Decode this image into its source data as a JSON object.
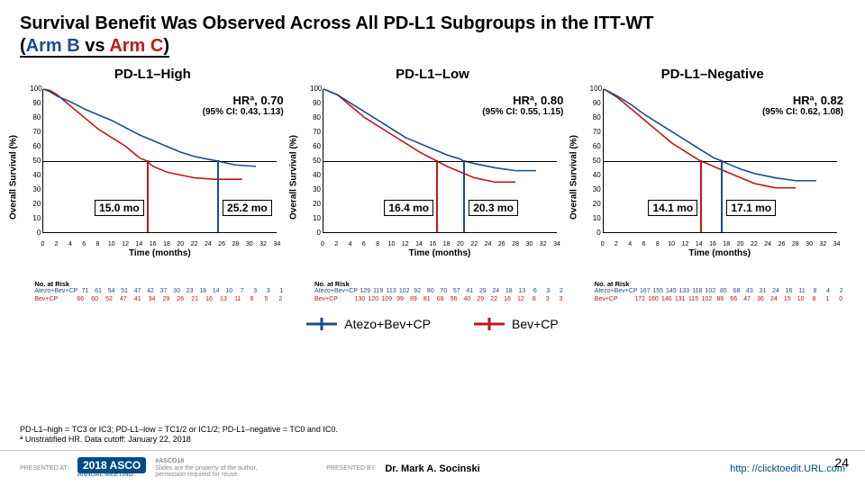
{
  "title_main": "Survival Benefit Was Observed Across All PD-L1 Subgroups in the ITT-WT",
  "title_paren_open": "(",
  "title_armB": "Arm B",
  "title_vs": " vs ",
  "title_armC": "Arm C",
  "title_paren_close": ")",
  "common": {
    "ylabel": "Overall Survival (%)",
    "xlabel": "Time (months)",
    "yticks": [
      0,
      10,
      20,
      30,
      40,
      50,
      60,
      70,
      80,
      90,
      100
    ],
    "xticks": [
      0,
      2,
      4,
      6,
      8,
      10,
      12,
      14,
      16,
      18,
      20,
      22,
      24,
      26,
      28,
      30,
      32,
      34
    ],
    "nar_title": "No. at Risk",
    "series_names": {
      "A": "Atezo+Bev+CP",
      "B": "Bev+CP"
    },
    "colors": {
      "A": "#1a4d8f",
      "B": "#c01818",
      "axis": "#000000",
      "bg": "#ffffff"
    },
    "line_width": 1.6,
    "x_max": 34,
    "y_max": 100,
    "h50_pct": 50
  },
  "panels": [
    {
      "title": "PD-L1–High",
      "hr_label": "HRª, 0.70",
      "ci_label": "(95% CI: 0.43, 1.13)",
      "median_A": {
        "months": 25.2,
        "label": "25.2 mo",
        "height_pct": 50
      },
      "median_B": {
        "months": 15.0,
        "label": "15.0 mo",
        "height_pct": 50
      },
      "curve_A": [
        [
          0,
          100
        ],
        [
          1,
          98
        ],
        [
          2,
          95
        ],
        [
          3,
          93
        ],
        [
          4,
          91
        ],
        [
          6,
          86
        ],
        [
          8,
          82
        ],
        [
          10,
          78
        ],
        [
          12,
          73
        ],
        [
          14,
          68
        ],
        [
          16,
          64
        ],
        [
          18,
          60
        ],
        [
          20,
          56
        ],
        [
          22,
          53
        ],
        [
          24,
          51
        ],
        [
          25.2,
          50
        ],
        [
          28,
          47
        ],
        [
          31,
          46
        ]
      ],
      "curve_B": [
        [
          0,
          100
        ],
        [
          1,
          99
        ],
        [
          2,
          96
        ],
        [
          3,
          92
        ],
        [
          4,
          88
        ],
        [
          6,
          80
        ],
        [
          8,
          72
        ],
        [
          10,
          66
        ],
        [
          12,
          60
        ],
        [
          13,
          56
        ],
        [
          14,
          52
        ],
        [
          15,
          50
        ],
        [
          16,
          46
        ],
        [
          18,
          42
        ],
        [
          20,
          40
        ],
        [
          22,
          38
        ],
        [
          25,
          37
        ],
        [
          29,
          37
        ]
      ],
      "nar_A": [
        71,
        61,
        54,
        51,
        47,
        42,
        37,
        30,
        23,
        18,
        14,
        10,
        7,
        3,
        3,
        1
      ],
      "nar_B": [
        66,
        60,
        52,
        47,
        41,
        34,
        29,
        26,
        21,
        16,
        13,
        11,
        6,
        5,
        2
      ]
    },
    {
      "title": "PD-L1–Low",
      "hr_label": "HRª, 0.80",
      "ci_label": "(95% CI: 0.55, 1.15)",
      "median_A": {
        "months": 20.3,
        "label": "20.3 mo",
        "height_pct": 50
      },
      "median_B": {
        "months": 16.4,
        "label": "16.4 mo",
        "height_pct": 50
      },
      "curve_A": [
        [
          0,
          100
        ],
        [
          2,
          96
        ],
        [
          4,
          90
        ],
        [
          6,
          84
        ],
        [
          8,
          78
        ],
        [
          10,
          72
        ],
        [
          12,
          66
        ],
        [
          14,
          62
        ],
        [
          16,
          58
        ],
        [
          18,
          54
        ],
        [
          20,
          51
        ],
        [
          20.3,
          50
        ],
        [
          22,
          48
        ],
        [
          25,
          45
        ],
        [
          28,
          43
        ],
        [
          31,
          43
        ]
      ],
      "curve_B": [
        [
          0,
          100
        ],
        [
          2,
          96
        ],
        [
          4,
          88
        ],
        [
          6,
          80
        ],
        [
          8,
          74
        ],
        [
          10,
          68
        ],
        [
          12,
          62
        ],
        [
          14,
          56
        ],
        [
          16,
          51
        ],
        [
          16.4,
          50
        ],
        [
          18,
          46
        ],
        [
          20,
          42
        ],
        [
          22,
          38
        ],
        [
          25,
          35
        ],
        [
          28,
          35
        ]
      ],
      "nar_A": [
        129,
        119,
        113,
        102,
        92,
        80,
        70,
        57,
        41,
        29,
        24,
        18,
        13,
        6,
        3,
        2
      ],
      "nar_B": [
        130,
        120,
        109,
        99,
        89,
        81,
        69,
        56,
        40,
        29,
        22,
        16,
        12,
        8,
        3,
        3
      ]
    },
    {
      "title": "PD-L1–Negative",
      "hr_label": "HRª, 0.82",
      "ci_label": "(95% CI: 0.62, 1.08)",
      "median_A": {
        "months": 17.1,
        "label": "17.1 mo",
        "height_pct": 50
      },
      "median_B": {
        "months": 14.1,
        "label": "14.1 mo",
        "height_pct": 50
      },
      "curve_A": [
        [
          0,
          100
        ],
        [
          2,
          95
        ],
        [
          4,
          89
        ],
        [
          6,
          82
        ],
        [
          8,
          76
        ],
        [
          10,
          70
        ],
        [
          12,
          64
        ],
        [
          14,
          58
        ],
        [
          16,
          52
        ],
        [
          17.1,
          50
        ],
        [
          18,
          48
        ],
        [
          20,
          44
        ],
        [
          22,
          41
        ],
        [
          25,
          38
        ],
        [
          28,
          36
        ],
        [
          31,
          36
        ]
      ],
      "curve_B": [
        [
          0,
          100
        ],
        [
          2,
          94
        ],
        [
          4,
          86
        ],
        [
          6,
          78
        ],
        [
          8,
          70
        ],
        [
          10,
          62
        ],
        [
          12,
          56
        ],
        [
          14,
          50
        ],
        [
          14.1,
          50
        ],
        [
          16,
          46
        ],
        [
          18,
          42
        ],
        [
          20,
          38
        ],
        [
          22,
          34
        ],
        [
          25,
          31
        ],
        [
          28,
          31
        ]
      ],
      "nar_A": [
        167,
        155,
        145,
        133,
        118,
        102,
        85,
        68,
        43,
        31,
        24,
        16,
        11,
        8,
        4,
        2
      ],
      "nar_B": [
        172,
        160,
        146,
        131,
        115,
        102,
        86,
        66,
        47,
        36,
        24,
        15,
        10,
        8,
        1,
        0
      ]
    }
  ],
  "legend": {
    "A": "Atezo+Bev+CP",
    "B": "Bev+CP"
  },
  "footnote_line1": "PD-L1–high = TC3 or IC3; PD-L1–low = TC1/2 or IC1/2; PD-L1–negative = TC0 and IC0.",
  "footnote_line2": "ª Unstratified HR. Data cutoff: January 22, 2018",
  "footer": {
    "presented_at": "PRESENTED AT:",
    "asco_year": "2018 ASCO",
    "asco_sub": "ANNUAL MEETING",
    "hash": "#ASCO18",
    "disclaim": "Slides are the property of the author, permission required for reuse.",
    "presented_by": "PRESENTED BY:",
    "presenter": "Dr. Mark A. Socinski",
    "url": "http: //clicktoedit.URL.com",
    "slide_number": "24"
  }
}
